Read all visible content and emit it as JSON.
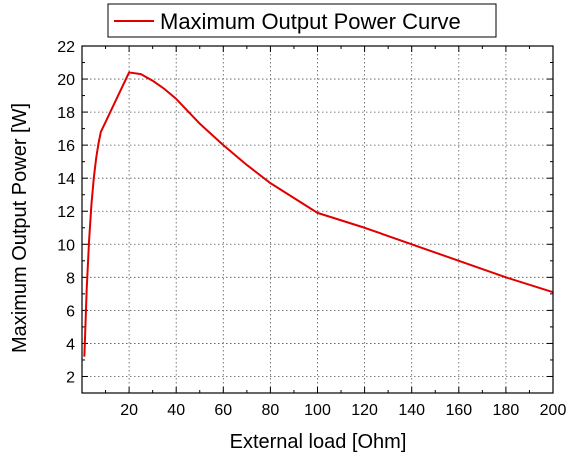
{
  "chart_data": {
    "type": "line",
    "xlabel": "External load [Ohm]",
    "ylabel": "Maximum Output Power [W]",
    "xlim": [
      0,
      200
    ],
    "ylim": [
      1,
      22
    ],
    "x_ticks": [
      20,
      40,
      60,
      80,
      100,
      120,
      140,
      160,
      180,
      200
    ],
    "y_ticks": [
      2,
      4,
      6,
      8,
      10,
      12,
      14,
      16,
      18,
      20,
      22
    ],
    "grid": true,
    "legend_position": "top",
    "series": [
      {
        "name": "Maximum Output Power Curve",
        "color": "#e00000",
        "x": [
          1,
          2,
          3,
          4,
          5,
          6,
          7,
          8,
          10,
          15,
          20,
          25,
          30,
          35,
          40,
          50,
          60,
          70,
          80,
          90,
          100,
          120,
          140,
          160,
          180,
          200
        ],
        "y": [
          3.2,
          7.3,
          10.2,
          12.4,
          14.0,
          15.2,
          16.1,
          16.8,
          17.4,
          18.9,
          20.4,
          20.3,
          19.9,
          19.4,
          18.8,
          17.3,
          16.0,
          14.8,
          13.7,
          12.8,
          11.9,
          11.0,
          10.0,
          9.0,
          8.0,
          7.1
        ]
      }
    ]
  }
}
